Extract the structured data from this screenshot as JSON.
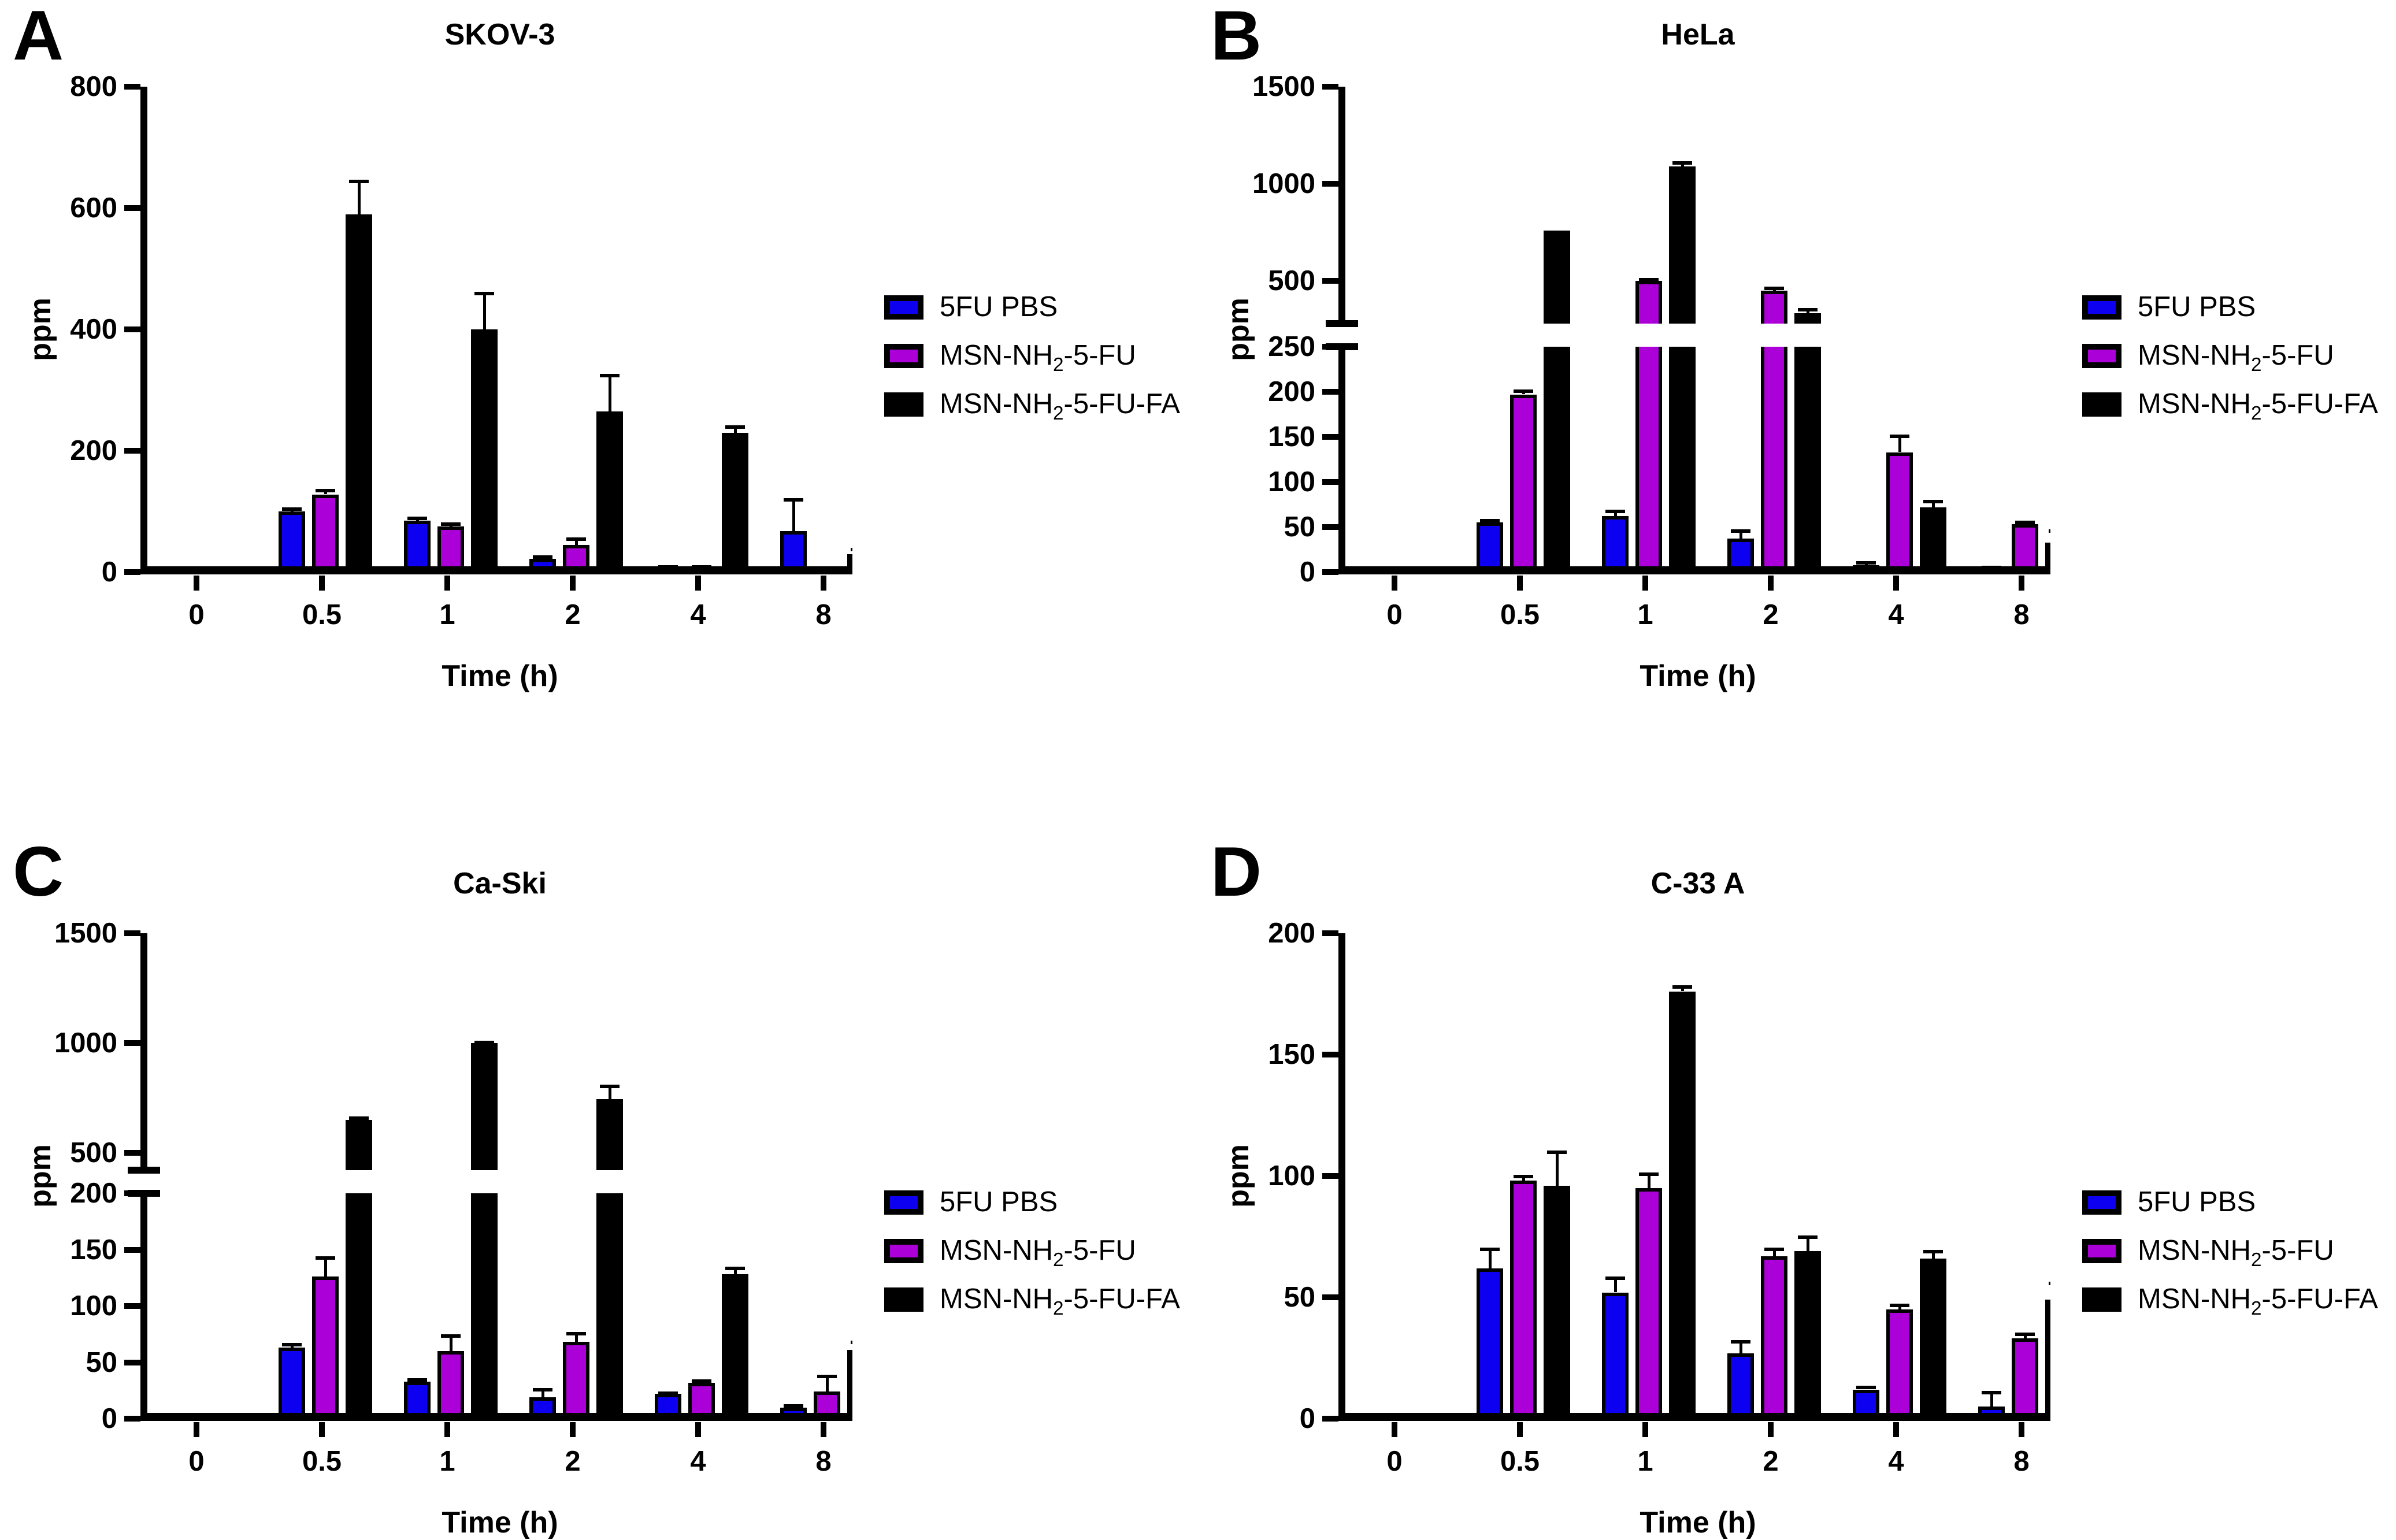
{
  "figure": {
    "ylabel": "ppm",
    "xlabel": "Time (h)",
    "legend_labels": [
      "5FU PBS",
      "MSN-NH₂-5-FU",
      "MSN-NH₂-5-FU-FA"
    ],
    "series_colors": [
      "#0d00f0",
      "#ac00d8",
      "#000000"
    ]
  },
  "chart_data": [
    {
      "type": "bar",
      "panel_letter": "A",
      "title": "SKOV-3",
      "xlabel": "Time (h)",
      "ylabel": "ppm",
      "categories": [
        "0",
        "0.5",
        "1",
        "2",
        "4",
        "8"
      ],
      "series": [
        {
          "name": "5FU PBS",
          "values": [
            0,
            100,
            85,
            22,
            8,
            68
          ],
          "errors": [
            0,
            5,
            5,
            4,
            2,
            52
          ]
        },
        {
          "name": "MSN-NH₂-5-FU",
          "values": [
            0,
            128,
            75,
            45,
            8,
            5
          ],
          "errors": [
            0,
            7,
            5,
            10,
            2,
            2
          ]
        },
        {
          "name": "MSN-NH₂-5-FU-FA",
          "values": [
            0,
            590,
            400,
            265,
            230,
            30
          ],
          "errors": [
            0,
            55,
            60,
            60,
            10,
            8
          ]
        }
      ],
      "axis": {
        "segments": [
          {
            "min": 0,
            "max": 800,
            "ticks": [
              0,
              200,
              400,
              600,
              800
            ]
          }
        ]
      },
      "legend_position": "right"
    },
    {
      "type": "bar",
      "panel_letter": "B",
      "title": "HeLa",
      "xlabel": "Time (h)",
      "ylabel": "ppm",
      "categories": [
        "0",
        "0.5",
        "1",
        "2",
        "4",
        "8"
      ],
      "series": [
        {
          "name": "5FU PBS",
          "values": [
            0,
            55,
            62,
            37,
            8,
            4
          ],
          "errors": [
            0,
            3,
            6,
            9,
            3,
            2
          ]
        },
        {
          "name": "MSN-NH₂-5-FU",
          "values": [
            0,
            197,
            500,
            450,
            133,
            53
          ],
          "errors": [
            0,
            4,
            10,
            15,
            18,
            3
          ]
        },
        {
          "name": "MSN-NH₂-5-FU-FA",
          "values": [
            0,
            760,
            1090,
            335,
            72,
            33
          ],
          "errors": [
            0,
            0,
            20,
            20,
            7,
            13
          ]
        }
      ],
      "axis": {
        "segments": [
          {
            "min": 0,
            "max": 250,
            "ticks": [
              0,
              50,
              100,
              150,
              200,
              250
            ]
          },
          {
            "min": 280,
            "max": 1500,
            "ticks": [
              500,
              1000,
              1500
            ],
            "break": true
          }
        ]
      },
      "legend_position": "right"
    },
    {
      "type": "bar",
      "panel_letter": "C",
      "title": "Ca-Ski",
      "xlabel": "Time (h)",
      "ylabel": "ppm",
      "categories": [
        "0",
        "0.5",
        "1",
        "2",
        "4",
        "8"
      ],
      "series": [
        {
          "name": "5FU PBS",
          "values": [
            0,
            63,
            33,
            19,
            22,
            10
          ],
          "errors": [
            0,
            3,
            2,
            7,
            1,
            2
          ]
        },
        {
          "name": "MSN-NH₂-5-FU",
          "values": [
            0,
            126,
            60,
            68,
            32,
            24
          ],
          "errors": [
            0,
            17,
            14,
            8,
            2,
            14
          ]
        },
        {
          "name": "MSN-NH₂-5-FU-FA",
          "values": [
            0,
            650,
            1000,
            745,
            128,
            61
          ],
          "errors": [
            0,
            10,
            5,
            60,
            6,
            7
          ]
        }
      ],
      "axis": {
        "segments": [
          {
            "min": 0,
            "max": 200,
            "ticks": [
              0,
              50,
              100,
              150,
              200
            ]
          },
          {
            "min": 420,
            "max": 1500,
            "ticks": [
              500,
              1000,
              1500
            ],
            "break": true
          }
        ]
      },
      "legend_position": "right"
    },
    {
      "type": "bar",
      "panel_letter": "D",
      "title": "C-33 A",
      "xlabel": "Time (h)",
      "ylabel": "ppm",
      "categories": [
        "0",
        "0.5",
        "1",
        "2",
        "4",
        "8"
      ],
      "series": [
        {
          "name": "5FU PBS",
          "values": [
            0,
            62,
            52,
            27,
            12,
            5
          ],
          "errors": [
            0,
            8,
            6,
            5,
            1,
            6
          ]
        },
        {
          "name": "MSN-NH₂-5-FU",
          "values": [
            0,
            98,
            95,
            67,
            45,
            33
          ],
          "errors": [
            0,
            2,
            6,
            3,
            2,
            2
          ]
        },
        {
          "name": "MSN-NH₂-5-FU-FA",
          "values": [
            0,
            96,
            176,
            69,
            66,
            49
          ],
          "errors": [
            0,
            14,
            2,
            6,
            3,
            7
          ]
        }
      ],
      "axis": {
        "segments": [
          {
            "min": 0,
            "max": 200,
            "ticks": [
              0,
              50,
              100,
              150,
              200
            ]
          }
        ]
      },
      "legend_position": "right"
    }
  ]
}
